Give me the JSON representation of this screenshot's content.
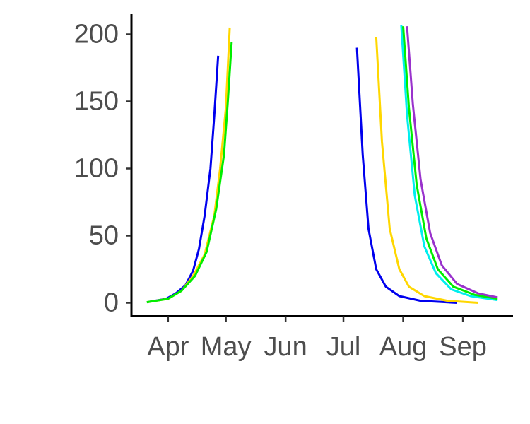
{
  "chart_data": {
    "type": "line",
    "title": "",
    "xlabel": "",
    "ylabel": "",
    "x_ticks": [
      "Apr",
      "May",
      "Jun",
      "Jul",
      "Aug",
      "Sep"
    ],
    "x_tick_dates": [
      "2000-04-01",
      "2000-05-01",
      "2000-06-01",
      "2000-07-01",
      "2000-08-01",
      "2000-09-01"
    ],
    "xlim": [
      "2000-03-13",
      "2000-09-27"
    ],
    "y_ticks": [
      0,
      50,
      100,
      150,
      200
    ],
    "ylim": [
      -10,
      215
    ],
    "grid": false,
    "legend": "none",
    "series": [
      {
        "color": "#0000ee",
        "points": [
          [
            "2000-03-21",
            0.5
          ],
          [
            "2000-03-31",
            3
          ],
          [
            "2000-04-05",
            7
          ],
          [
            "2000-04-10",
            13
          ],
          [
            "2000-04-14",
            24
          ],
          [
            "2000-04-17",
            40
          ],
          [
            "2000-04-20",
            65
          ],
          [
            "2000-04-23",
            100
          ],
          [
            "2000-04-25",
            140
          ],
          [
            "2000-04-27",
            184
          ]
        ]
      },
      {
        "color": "#ffd700",
        "points": [
          [
            "2000-03-21",
            0.5
          ],
          [
            "2000-04-01",
            3
          ],
          [
            "2000-04-08",
            9
          ],
          [
            "2000-04-14",
            20
          ],
          [
            "2000-04-20",
            36
          ],
          [
            "2000-04-25",
            65
          ],
          [
            "2000-04-28",
            100
          ],
          [
            "2000-05-01",
            145
          ],
          [
            "2000-05-03",
            205
          ]
        ]
      },
      {
        "color": "#00ee00",
        "points": [
          [
            "2000-03-21",
            0.5
          ],
          [
            "2000-04-01",
            3
          ],
          [
            "2000-04-08",
            9
          ],
          [
            "2000-04-15",
            20
          ],
          [
            "2000-04-21",
            38
          ],
          [
            "2000-04-26",
            70
          ],
          [
            "2000-04-30",
            110
          ],
          [
            "2000-05-02",
            150
          ],
          [
            "2000-05-04",
            194
          ]
        ]
      },
      {
        "color": "#0000ee",
        "points": [
          [
            "2000-07-08",
            190
          ],
          [
            "2000-07-11",
            110
          ],
          [
            "2000-07-14",
            55
          ],
          [
            "2000-07-18",
            25
          ],
          [
            "2000-07-23",
            12
          ],
          [
            "2000-07-30",
            5
          ],
          [
            "2000-08-10",
            1.5
          ],
          [
            "2000-08-29",
            0
          ]
        ]
      },
      {
        "color": "#ffd700",
        "points": [
          [
            "2000-07-18",
            198
          ],
          [
            "2000-07-21",
            120
          ],
          [
            "2000-07-25",
            55
          ],
          [
            "2000-07-30",
            25
          ],
          [
            "2000-08-04",
            12
          ],
          [
            "2000-08-12",
            5
          ],
          [
            "2000-08-24",
            1.5
          ],
          [
            "2000-09-09",
            0
          ]
        ]
      },
      {
        "color": "#00eeee",
        "points": [
          [
            "2000-07-31",
            207
          ],
          [
            "2000-08-03",
            140
          ],
          [
            "2000-08-07",
            80
          ],
          [
            "2000-08-12",
            42
          ],
          [
            "2000-08-18",
            22
          ],
          [
            "2000-08-26",
            10
          ],
          [
            "2000-09-05",
            5
          ],
          [
            "2000-09-19",
            2
          ]
        ]
      },
      {
        "color": "#00ee00",
        "points": [
          [
            "2000-08-01",
            206
          ],
          [
            "2000-08-04",
            145
          ],
          [
            "2000-08-08",
            88
          ],
          [
            "2000-08-13",
            48
          ],
          [
            "2000-08-19",
            25
          ],
          [
            "2000-08-27",
            12
          ],
          [
            "2000-09-07",
            6
          ],
          [
            "2000-09-19",
            3
          ]
        ]
      },
      {
        "color": "#9932cc",
        "points": [
          [
            "2000-08-03",
            206
          ],
          [
            "2000-08-06",
            148
          ],
          [
            "2000-08-10",
            92
          ],
          [
            "2000-08-15",
            52
          ],
          [
            "2000-08-21",
            28
          ],
          [
            "2000-08-29",
            14
          ],
          [
            "2000-09-09",
            7
          ],
          [
            "2000-09-19",
            4
          ]
        ]
      }
    ]
  }
}
